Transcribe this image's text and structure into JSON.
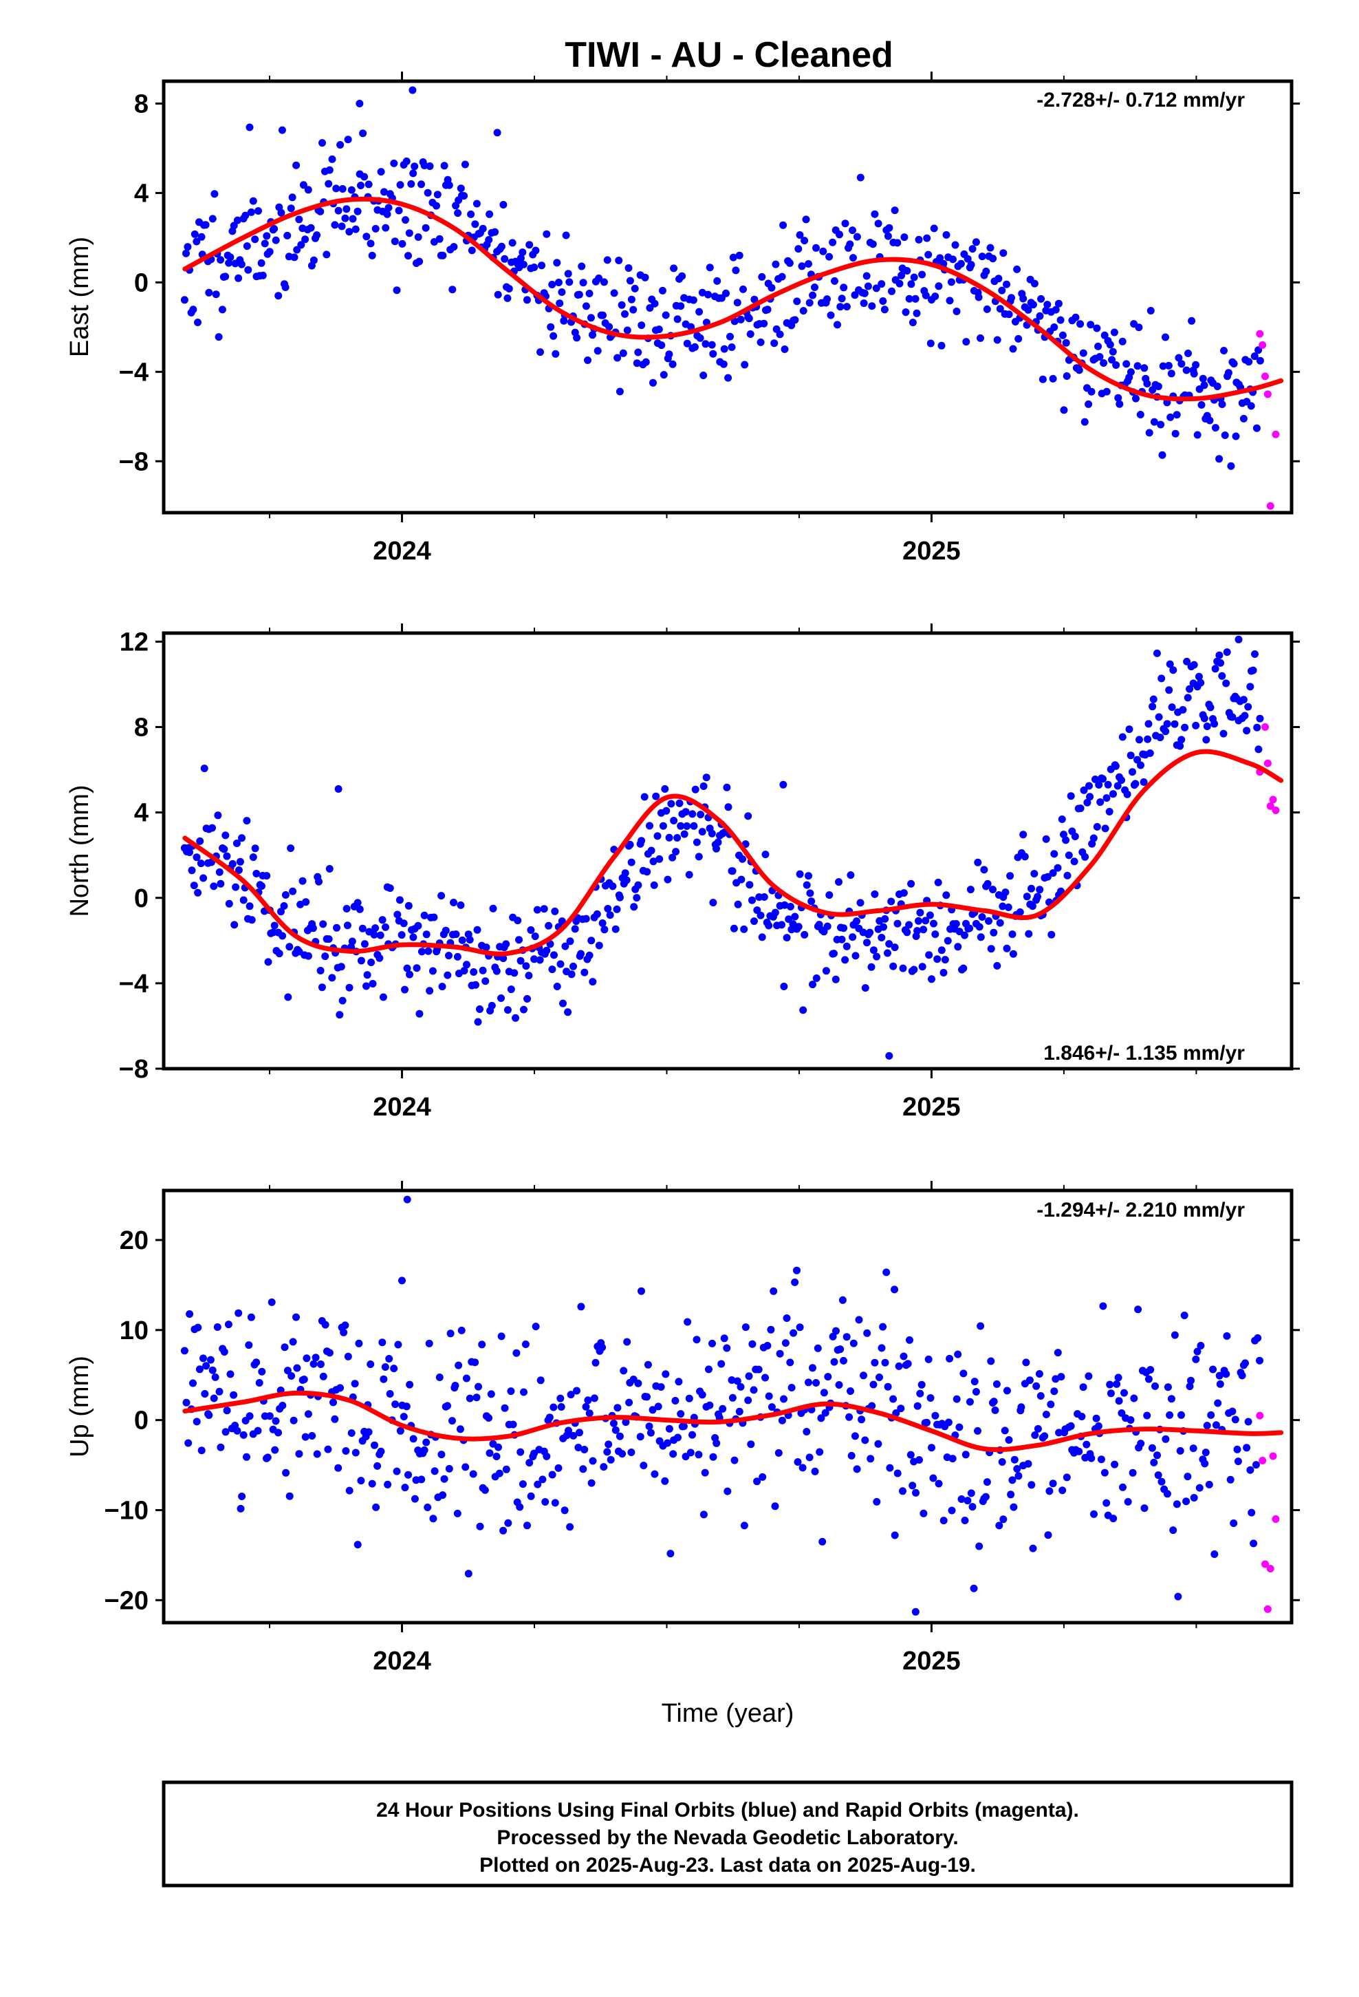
{
  "title": "TIWI  - AU - Cleaned",
  "xlabel": "Time (year)",
  "footer": {
    "line1": "24 Hour Positions Using Final Orbits (blue) and Rapid Orbits (magenta).",
    "line2": "Processed by the Nevada Geodetic Laboratory.",
    "line3": "Plotted on 2025-Aug-23. Last data on 2025-Aug-19."
  },
  "colors": {
    "final": "#0000ff",
    "rapid": "#ff00ff",
    "fit": "#ff0000",
    "axis": "#000000"
  },
  "chart_data": [
    {
      "type": "scatter",
      "ylabel": "East (mm)",
      "rate_text": "-2.728+/- 0.712 mm/yr",
      "xlim": [
        2023.55,
        2025.68
      ],
      "ylim": [
        -10.3,
        9.0
      ],
      "yticks": [
        -8,
        -4,
        0,
        4,
        8
      ],
      "xticks": [
        2024,
        2025
      ],
      "fit": {
        "x": [
          2023.59,
          2023.7,
          2023.8,
          2023.9,
          2024.0,
          2024.1,
          2024.2,
          2024.3,
          2024.4,
          2024.5,
          2024.6,
          2024.7,
          2024.8,
          2024.9,
          2025.0,
          2025.1,
          2025.2,
          2025.3,
          2025.4,
          2025.5,
          2025.6,
          2025.66
        ],
        "y": [
          0.6,
          2.0,
          3.1,
          3.7,
          3.5,
          2.4,
          0.5,
          -1.3,
          -2.3,
          -2.4,
          -1.8,
          -0.6,
          0.4,
          1.0,
          0.8,
          -0.3,
          -2.0,
          -3.9,
          -5.0,
          -5.2,
          -4.8,
          -4.4
        ]
      },
      "trend": {
        "x": [
          2023.59,
          2023.9,
          2024.1,
          2024.3,
          2024.5,
          2024.7,
          2024.9,
          2025.1,
          2025.3,
          2025.5
        ],
        "y": [
          0.6,
          3.6,
          3.0,
          -0.7,
          -2.2,
          -0.8,
          0.9,
          0.2,
          -3.4,
          -5.1
        ]
      },
      "scatter": {
        "seed": 11,
        "sigma": 1.45,
        "count": 660,
        "x_end": 2025.62
      },
      "rapid": {
        "x": [
          2025.62,
          2025.625,
          2025.63,
          2025.635,
          2025.64,
          2025.65
        ],
        "y": [
          -2.3,
          -2.8,
          -4.2,
          -5.0,
          -10.0,
          -6.8
        ]
      },
      "outliers": {
        "x": [
          2023.92,
          2024.02,
          2024.18
        ],
        "y": [
          8.0,
          8.6,
          6.7
        ]
      }
    },
    {
      "type": "scatter",
      "ylabel": "North (mm)",
      "rate_text": "1.846+/- 1.135 mm/yr",
      "xlim": [
        2023.55,
        2025.68
      ],
      "ylim": [
        -8.0,
        12.4
      ],
      "yticks": [
        -8,
        -4,
        0,
        4,
        8,
        12
      ],
      "xticks": [
        2024,
        2025
      ],
      "fit": {
        "x": [
          2023.59,
          2023.7,
          2023.8,
          2023.9,
          2024.0,
          2024.1,
          2024.2,
          2024.3,
          2024.4,
          2024.5,
          2024.6,
          2024.7,
          2024.8,
          2024.9,
          2025.0,
          2025.1,
          2025.2,
          2025.3,
          2025.4,
          2025.5,
          2025.6,
          2025.66
        ],
        "y": [
          2.8,
          0.8,
          -1.8,
          -2.5,
          -2.2,
          -2.3,
          -2.6,
          -1.5,
          1.9,
          4.7,
          3.6,
          0.6,
          -0.7,
          -0.6,
          -0.3,
          -0.6,
          -0.8,
          1.5,
          5.0,
          6.8,
          6.3,
          5.5
        ]
      },
      "trend": {
        "x": [
          2023.59,
          2023.7,
          2023.8,
          2023.9,
          2024.0,
          2024.1,
          2024.2,
          2024.3,
          2024.4,
          2024.5,
          2024.6,
          2024.7,
          2024.8,
          2024.9,
          2025.0,
          2025.1,
          2025.2,
          2025.3,
          2025.4,
          2025.5,
          2025.6
        ],
        "y": [
          2.6,
          1.0,
          -1.5,
          -2.1,
          -1.9,
          -2.6,
          -3.2,
          -2.8,
          0.2,
          3.2,
          2.4,
          -0.4,
          -1.8,
          -1.6,
          -1.2,
          -0.8,
          0.4,
          3.8,
          7.4,
          9.8,
          9.2
        ]
      },
      "scatter": {
        "seed": 29,
        "sigma": 1.35,
        "count": 660,
        "x_end": 2025.62
      },
      "rapid": {
        "x": [
          2025.62,
          2025.63,
          2025.635,
          2025.64,
          2025.645,
          2025.65
        ],
        "y": [
          5.9,
          8.0,
          6.3,
          4.3,
          4.6,
          4.1
        ]
      },
      "outliers": {
        "x": [
          2023.88,
          2024.72,
          2024.92,
          2025.58
        ],
        "y": [
          5.1,
          5.3,
          -7.4,
          12.1
        ]
      }
    },
    {
      "type": "scatter",
      "ylabel": "Up (mm)",
      "rate_text": "-1.294+/- 2.210 mm/yr",
      "xlim": [
        2023.55,
        2025.68
      ],
      "ylim": [
        -22.5,
        25.5
      ],
      "yticks": [
        -20,
        -10,
        0,
        10,
        20
      ],
      "xticks": [
        2024,
        2025
      ],
      "fit": {
        "x": [
          2023.59,
          2023.7,
          2023.8,
          2023.9,
          2024.0,
          2024.1,
          2024.2,
          2024.3,
          2024.4,
          2024.5,
          2024.6,
          2024.7,
          2024.8,
          2024.9,
          2025.0,
          2025.1,
          2025.2,
          2025.3,
          2025.4,
          2025.5,
          2025.6,
          2025.66
        ],
        "y": [
          1.0,
          2.0,
          3.0,
          2.2,
          -0.6,
          -2.0,
          -1.8,
          -0.3,
          0.3,
          0.0,
          -0.2,
          0.6,
          1.8,
          0.8,
          -1.2,
          -3.2,
          -2.8,
          -1.5,
          -1.0,
          -1.2,
          -1.5,
          -1.4
        ]
      },
      "trend": {
        "x": [
          2023.59,
          2023.8,
          2024.0,
          2024.2,
          2024.4,
          2024.6,
          2024.8,
          2025.0,
          2025.2,
          2025.4,
          2025.6
        ],
        "y": [
          1.5,
          3.5,
          -0.5,
          -2.5,
          0.5,
          0.0,
          2.0,
          -1.0,
          -2.5,
          -0.5,
          -1.0
        ]
      },
      "scatter": {
        "seed": 47,
        "sigma": 5.6,
        "count": 660,
        "x_end": 2025.62
      },
      "rapid": {
        "x": [
          2025.62,
          2025.625,
          2025.63,
          2025.635,
          2025.64,
          2025.645,
          2025.65
        ],
        "y": [
          0.5,
          -4.5,
          -16.0,
          -21.0,
          -16.5,
          -4.0,
          -11.0
        ]
      },
      "outliers": {
        "x": [
          2024.01,
          2024.0,
          2024.93,
          2025.08,
          2024.97
        ],
        "y": [
          24.5,
          15.5,
          14.5,
          -18.7,
          -21.3
        ]
      }
    }
  ]
}
